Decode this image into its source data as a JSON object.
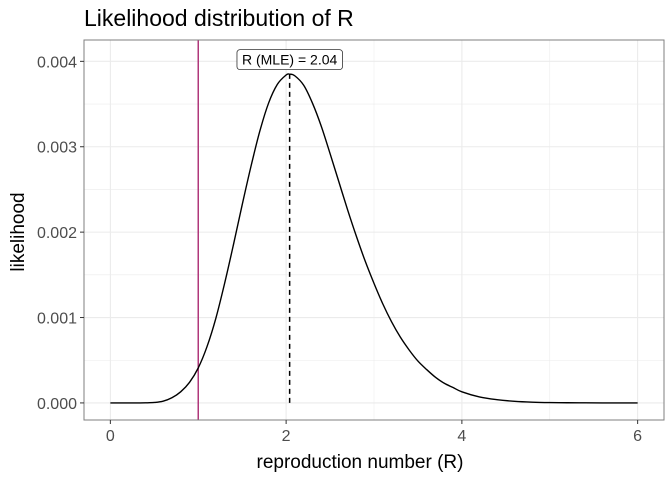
{
  "chart_data": {
    "type": "line",
    "title": "Likelihood distribution of R",
    "xlabel": "reproduction number (R)",
    "ylabel": "likelihood",
    "xlim": [
      -0.3,
      6.3
    ],
    "ylim": [
      -0.0002,
      0.00425
    ],
    "x_ticks": [
      0,
      2,
      4,
      6
    ],
    "x_tick_labels": [
      "0",
      "2",
      "4",
      "6"
    ],
    "y_ticks": [
      0,
      0.001,
      0.002,
      0.003,
      0.004
    ],
    "y_tick_labels": [
      "0.000",
      "0.001",
      "0.002",
      "0.003",
      "0.004"
    ],
    "grid": true,
    "series": [
      {
        "color": "#000000",
        "x": [
          0,
          0.1,
          0.2,
          0.3,
          0.4,
          0.5,
          0.6,
          0.7,
          0.8,
          0.9,
          1.0,
          1.1,
          1.2,
          1.3,
          1.4,
          1.5,
          1.6,
          1.7,
          1.8,
          1.9,
          2.0,
          2.04,
          2.1,
          2.2,
          2.3,
          2.4,
          2.5,
          2.6,
          2.7,
          2.8,
          2.9,
          3.0,
          3.1,
          3.2,
          3.3,
          3.4,
          3.5,
          3.6,
          3.7,
          3.8,
          3.9,
          4.0,
          4.2,
          4.4,
          4.6,
          4.8,
          5.0,
          5.2,
          5.4,
          5.6,
          5.8,
          6.0
        ],
        "y": [
          0,
          0,
          0,
          0,
          1e-06,
          5e-06,
          2e-05,
          6e-05,
          0.00013,
          0.00024,
          0.00041,
          0.00066,
          0.00099,
          0.0014,
          0.00185,
          0.00232,
          0.00277,
          0.00318,
          0.00351,
          0.00373,
          0.00384,
          0.00385,
          0.00383,
          0.00372,
          0.00351,
          0.00324,
          0.00292,
          0.00259,
          0.00226,
          0.00195,
          0.00166,
          0.0014,
          0.00116,
          0.00095,
          0.00077,
          0.00062,
          0.00049,
          0.00039,
          0.0003,
          0.00023,
          0.00018,
          0.00013,
          7e-05,
          3.8e-05,
          1.9e-05,
          9e-06,
          4e-06,
          2e-06,
          1e-06,
          0,
          0,
          0
        ]
      }
    ],
    "reference_lines": [
      {
        "orientation": "vertical",
        "x": 1,
        "style": "solid",
        "color": "#b0377a"
      },
      {
        "orientation": "vertical",
        "x": 2.04,
        "y_from": 0,
        "y_to": 0.00385,
        "style": "dashed",
        "color": "#000000"
      }
    ],
    "annotation": {
      "text": "R (MLE) = 2.04",
      "x": 2.04,
      "y": 0.00402
    }
  }
}
